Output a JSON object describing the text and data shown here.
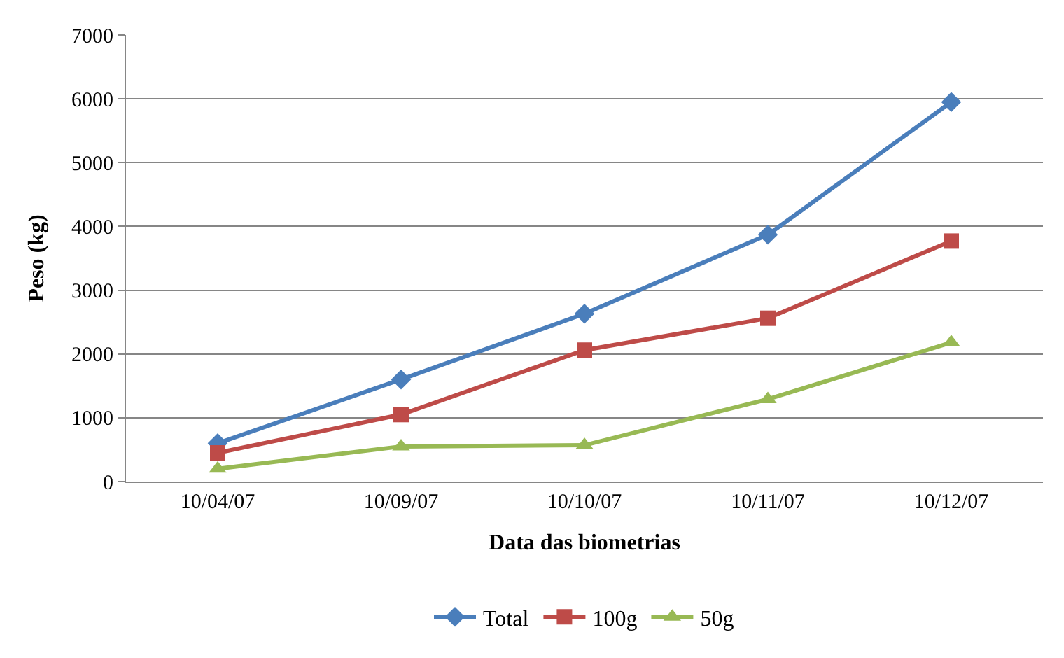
{
  "chart_data": {
    "type": "line",
    "xlabel": "Data das biometrias",
    "ylabel": "Peso (kg)",
    "categories": [
      "10/04/07",
      "10/09/07",
      "10/10/07",
      "10/11/07",
      "10/12/07"
    ],
    "ylim": [
      0,
      7000
    ],
    "yticks": [
      0,
      1000,
      2000,
      3000,
      4000,
      5000,
      6000,
      7000
    ],
    "grid": "y",
    "legend": "bottom",
    "line_style": "solid",
    "series": [
      {
        "name": "Total",
        "color": "#4a7ebb",
        "marker": "diamond",
        "values": [
          600,
          1600,
          2630,
          3870,
          5950
        ]
      },
      {
        "name": "100g",
        "color": "#be4b48",
        "marker": "square",
        "values": [
          450,
          1050,
          2060,
          2560,
          3770
        ]
      },
      {
        "name": "50g",
        "color": "#98b954",
        "marker": "triangle",
        "values": [
          200,
          550,
          570,
          1290,
          2180
        ]
      }
    ]
  }
}
